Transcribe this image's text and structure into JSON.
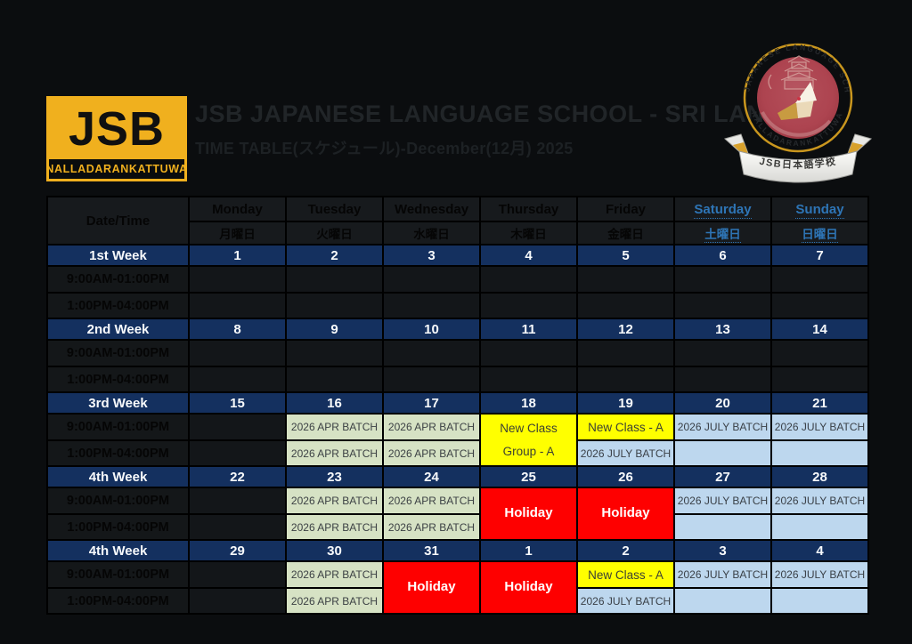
{
  "page": {
    "background": "#0b0d0f"
  },
  "brand": {
    "logo_text": "JSB",
    "logo_sub": "NALLADARANKATTUWA",
    "title": "JSB JAPANESE LANGUAGE SCHOOL - SRI LANKA",
    "subtitle": "TIME TABLE(スケジュール)-December(12月) 2025"
  },
  "emblem": {
    "ribbon_text": "JSB日本語学校",
    "arc_text_top": "JSB JAPANESE LANGUAGE SCHOOL",
    "arc_text_bottom": "NALLADARANKATTUWA"
  },
  "colors": {
    "logo_gold": "#F0B01E",
    "week_navy": "#14305F",
    "weekend_blue": "#2E75B6",
    "batch_green": "#D6E2C4",
    "batch_blue": "#BDD7EE",
    "class_yellow": "#FFFF00",
    "holiday_red": "#FE0000",
    "emblem_red": "#AE4450",
    "emblem_gold": "#C9961E"
  },
  "table": {
    "corner_label": "Date/Time",
    "days": [
      {
        "en": "Monday",
        "jp": "月曜日",
        "weekend": false
      },
      {
        "en": "Tuesday",
        "jp": "火曜日",
        "weekend": false
      },
      {
        "en": "Wednesday",
        "jp": "水曜日",
        "weekend": false
      },
      {
        "en": "Thursday",
        "jp": "木曜日",
        "weekend": false
      },
      {
        "en": "Friday",
        "jp": "金曜日",
        "weekend": false
      },
      {
        "en": "Saturday",
        "jp": "土曜日",
        "weekend": true
      },
      {
        "en": "Sunday",
        "jp": "日曜日",
        "weekend": true
      }
    ],
    "time_slots": [
      "9:00AM-01:00PM",
      "1:00PM-04:00PM"
    ],
    "weeks": [
      {
        "label": "1st Week",
        "dates": [
          "1",
          "2",
          "3",
          "4",
          "5",
          "6",
          "7"
        ],
        "cells": [
          null,
          null,
          null,
          null,
          null,
          null,
          null
        ]
      },
      {
        "label": "2nd Week",
        "dates": [
          "8",
          "9",
          "10",
          "11",
          "12",
          "13",
          "14"
        ],
        "cells": [
          null,
          null,
          null,
          null,
          null,
          null,
          null
        ]
      },
      {
        "label": "3rd Week",
        "dates": [
          "15",
          "16",
          "17",
          "18",
          "19",
          "20",
          "21"
        ],
        "cells": [
          null,
          {
            "am": {
              "text": "2026 APR BATCH",
              "style": "green"
            },
            "pm": {
              "text": "2026 APR BATCH",
              "style": "green"
            }
          },
          {
            "am": {
              "text": "2026 APR BATCH",
              "style": "green"
            },
            "pm": {
              "text": "2026 APR BATCH",
              "style": "green"
            }
          },
          {
            "merged": {
              "lines": [
                "New Class",
                "Group - A"
              ],
              "style": "yellow"
            }
          },
          {
            "am": {
              "text": "New Class - A",
              "style": "yellow"
            },
            "pm": {
              "text": "2026 JULY BATCH",
              "style": "blue"
            }
          },
          {
            "am": {
              "text": "2026 JULY BATCH",
              "style": "blue"
            },
            "pm": {
              "text": "",
              "style": "blue"
            }
          },
          {
            "am": {
              "text": "2026 JULY BATCH",
              "style": "blue"
            },
            "pm": {
              "text": "",
              "style": "blue"
            }
          }
        ]
      },
      {
        "label": "4th Week",
        "dates": [
          "22",
          "23",
          "24",
          "25",
          "26",
          "27",
          "28"
        ],
        "cells": [
          null,
          {
            "am": {
              "text": "2026 APR BATCH",
              "style": "green"
            },
            "pm": {
              "text": "2026 APR BATCH",
              "style": "green"
            }
          },
          {
            "am": {
              "text": "2026 APR BATCH",
              "style": "green"
            },
            "pm": {
              "text": "2026 APR BATCH",
              "style": "green"
            }
          },
          {
            "merged": {
              "lines": [
                "Holiday"
              ],
              "style": "red"
            }
          },
          {
            "merged": {
              "lines": [
                "Holiday"
              ],
              "style": "red"
            }
          },
          {
            "am": {
              "text": "2026 JULY BATCH",
              "style": "blue"
            },
            "pm": {
              "text": "",
              "style": "blue"
            }
          },
          {
            "am": {
              "text": "2026 JULY BATCH",
              "style": "blue"
            },
            "pm": {
              "text": "",
              "style": "blue"
            }
          }
        ]
      },
      {
        "label": "4th Week",
        "dates": [
          "29",
          "30",
          "31",
          "1",
          "2",
          "3",
          "4"
        ],
        "cells": [
          null,
          {
            "am": {
              "text": "2026 APR BATCH",
              "style": "green"
            },
            "pm": {
              "text": "2026 APR BATCH",
              "style": "green"
            }
          },
          {
            "merged": {
              "lines": [
                "Holiday"
              ],
              "style": "red"
            }
          },
          {
            "merged": {
              "lines": [
                "Holiday"
              ],
              "style": "red"
            }
          },
          {
            "am": {
              "text": "New Class - A",
              "style": "yellow"
            },
            "pm": {
              "text": "2026 JULY BATCH",
              "style": "blue"
            }
          },
          {
            "am": {
              "text": "2026 JULY BATCH",
              "style": "blue"
            },
            "pm": {
              "text": "",
              "style": "blue"
            }
          },
          {
            "am": {
              "text": "2026 JULY BATCH",
              "style": "blue"
            },
            "pm": {
              "text": "",
              "style": "blue"
            }
          }
        ]
      }
    ]
  }
}
